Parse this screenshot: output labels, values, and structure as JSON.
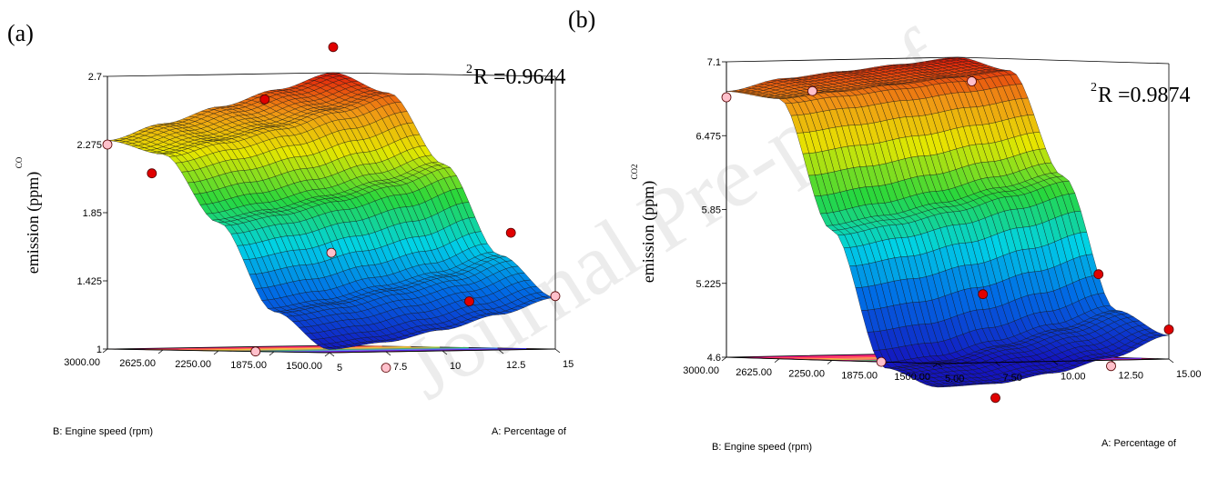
{
  "watermark": "Journal Pre-proof",
  "chart_data": [
    {
      "type": "surface3d",
      "panel_label": "(a)",
      "r2_sup": "2",
      "r2_text": "R =0.9644",
      "z_label_sub": "CO",
      "z_label": "emission (ppm)",
      "x_label": "A: Percentage of",
      "y_label": "B: Engine speed (rpm)",
      "x_ticks": [
        "5",
        "7.5",
        "10",
        "12.5",
        "15"
      ],
      "y_ticks": [
        "1500.00",
        "1875.00",
        "2250.00",
        "2625.00",
        "3000.00"
      ],
      "z_ticks": [
        "1",
        "1.425",
        "1.85",
        "2.275",
        "2.7"
      ],
      "x_range": [
        5,
        15
      ],
      "y_range": [
        1500,
        3000
      ],
      "z_range": [
        1.0,
        2.7
      ],
      "surface": {
        "rows_engine_speed": [
          1500,
          1875,
          2250,
          2625,
          3000
        ],
        "cols_percentage": [
          5,
          7.5,
          10,
          12.5,
          15
        ],
        "z": [
          [
            1.02,
            1.06,
            1.13,
            1.22,
            1.32
          ],
          [
            1.25,
            1.3,
            1.38,
            1.46,
            1.58
          ],
          [
            1.8,
            1.86,
            1.94,
            2.03,
            2.14
          ],
          [
            2.22,
            2.3,
            2.38,
            2.48,
            2.58
          ],
          [
            2.3,
            2.4,
            2.5,
            2.6,
            2.7
          ]
        ]
      },
      "design_points": [
        {
          "percentage": 15,
          "engine_speed": 3000,
          "value": 2.86,
          "above": true
        },
        {
          "percentage": 10,
          "engine_speed": 2700,
          "value": 2.55,
          "above": true
        },
        {
          "percentage": 5,
          "engine_speed": 2700,
          "value": 2.1,
          "above": true
        },
        {
          "percentage": 15,
          "engine_speed": 1800,
          "value": 1.72,
          "above": true
        },
        {
          "percentage": 12.5,
          "engine_speed": 1700,
          "value": 1.3,
          "above": true
        },
        {
          "percentage": 10,
          "engine_speed": 2250,
          "value": 1.6,
          "above": false
        },
        {
          "percentage": 5,
          "engine_speed": 3000,
          "value": 2.275,
          "above": false
        },
        {
          "percentage": 15,
          "engine_speed": 1500,
          "value": 1.33,
          "above": false
        },
        {
          "percentage": 5,
          "engine_speed": 2000,
          "value": 1.0,
          "above": false
        },
        {
          "percentage": 7.5,
          "engine_speed": 1500,
          "value": 0.9,
          "above": false
        }
      ]
    },
    {
      "type": "surface3d",
      "panel_label": "(b)",
      "r2_sup": "2",
      "r2_text": "R =0.9874",
      "z_label_sub": "CO2",
      "z_label": "emission (ppm)",
      "x_label": "A: Percentage of",
      "y_label": "B: Engine speed (rpm)",
      "x_ticks": [
        "5.00",
        "7.50",
        "10.00",
        "12.50",
        "15.00"
      ],
      "y_ticks": [
        "1500.00",
        "1875.00",
        "2250.00",
        "2625.00",
        "3000.00"
      ],
      "z_ticks": [
        "4.6",
        "5.225",
        "5.85",
        "6.475",
        "7.1"
      ],
      "x_range": [
        5,
        15
      ],
      "y_range": [
        1500,
        3000
      ],
      "z_range": [
        4.6,
        7.1
      ],
      "surface": {
        "rows_engine_speed": [
          1500,
          1875,
          2250,
          2625,
          3000
        ],
        "cols_percentage": [
          5,
          7.5,
          10,
          12.5,
          15
        ],
        "z": [
          [
            4.4,
            4.42,
            4.5,
            4.62,
            4.8
          ],
          [
            4.55,
            4.6,
            4.72,
            4.85,
            5.0
          ],
          [
            5.7,
            5.78,
            5.88,
            6.0,
            6.12
          ],
          [
            6.8,
            6.85,
            6.9,
            6.95,
            7.0
          ],
          [
            6.85,
            6.95,
            7.0,
            7.05,
            7.1
          ]
        ]
      },
      "design_points": [
        {
          "percentage": 15,
          "engine_speed": 1500,
          "value": 4.85,
          "above": true
        },
        {
          "percentage": 15,
          "engine_speed": 2000,
          "value": 5.3,
          "above": true
        },
        {
          "percentage": 10,
          "engine_speed": 2000,
          "value": 5.15,
          "above": true
        },
        {
          "percentage": 7.5,
          "engine_speed": 1500,
          "value": 4.3,
          "above": true
        },
        {
          "percentage": 5,
          "engine_speed": 3000,
          "value": 6.8,
          "above": false
        },
        {
          "percentage": 7.5,
          "engine_speed": 2800,
          "value": 6.85,
          "above": false
        },
        {
          "percentage": 15,
          "engine_speed": 2900,
          "value": 6.9,
          "above": false
        },
        {
          "percentage": 12.5,
          "engine_speed": 1500,
          "value": 4.55,
          "above": false
        },
        {
          "percentage": 5,
          "engine_speed": 1900,
          "value": 4.6,
          "above": false
        }
      ]
    }
  ]
}
